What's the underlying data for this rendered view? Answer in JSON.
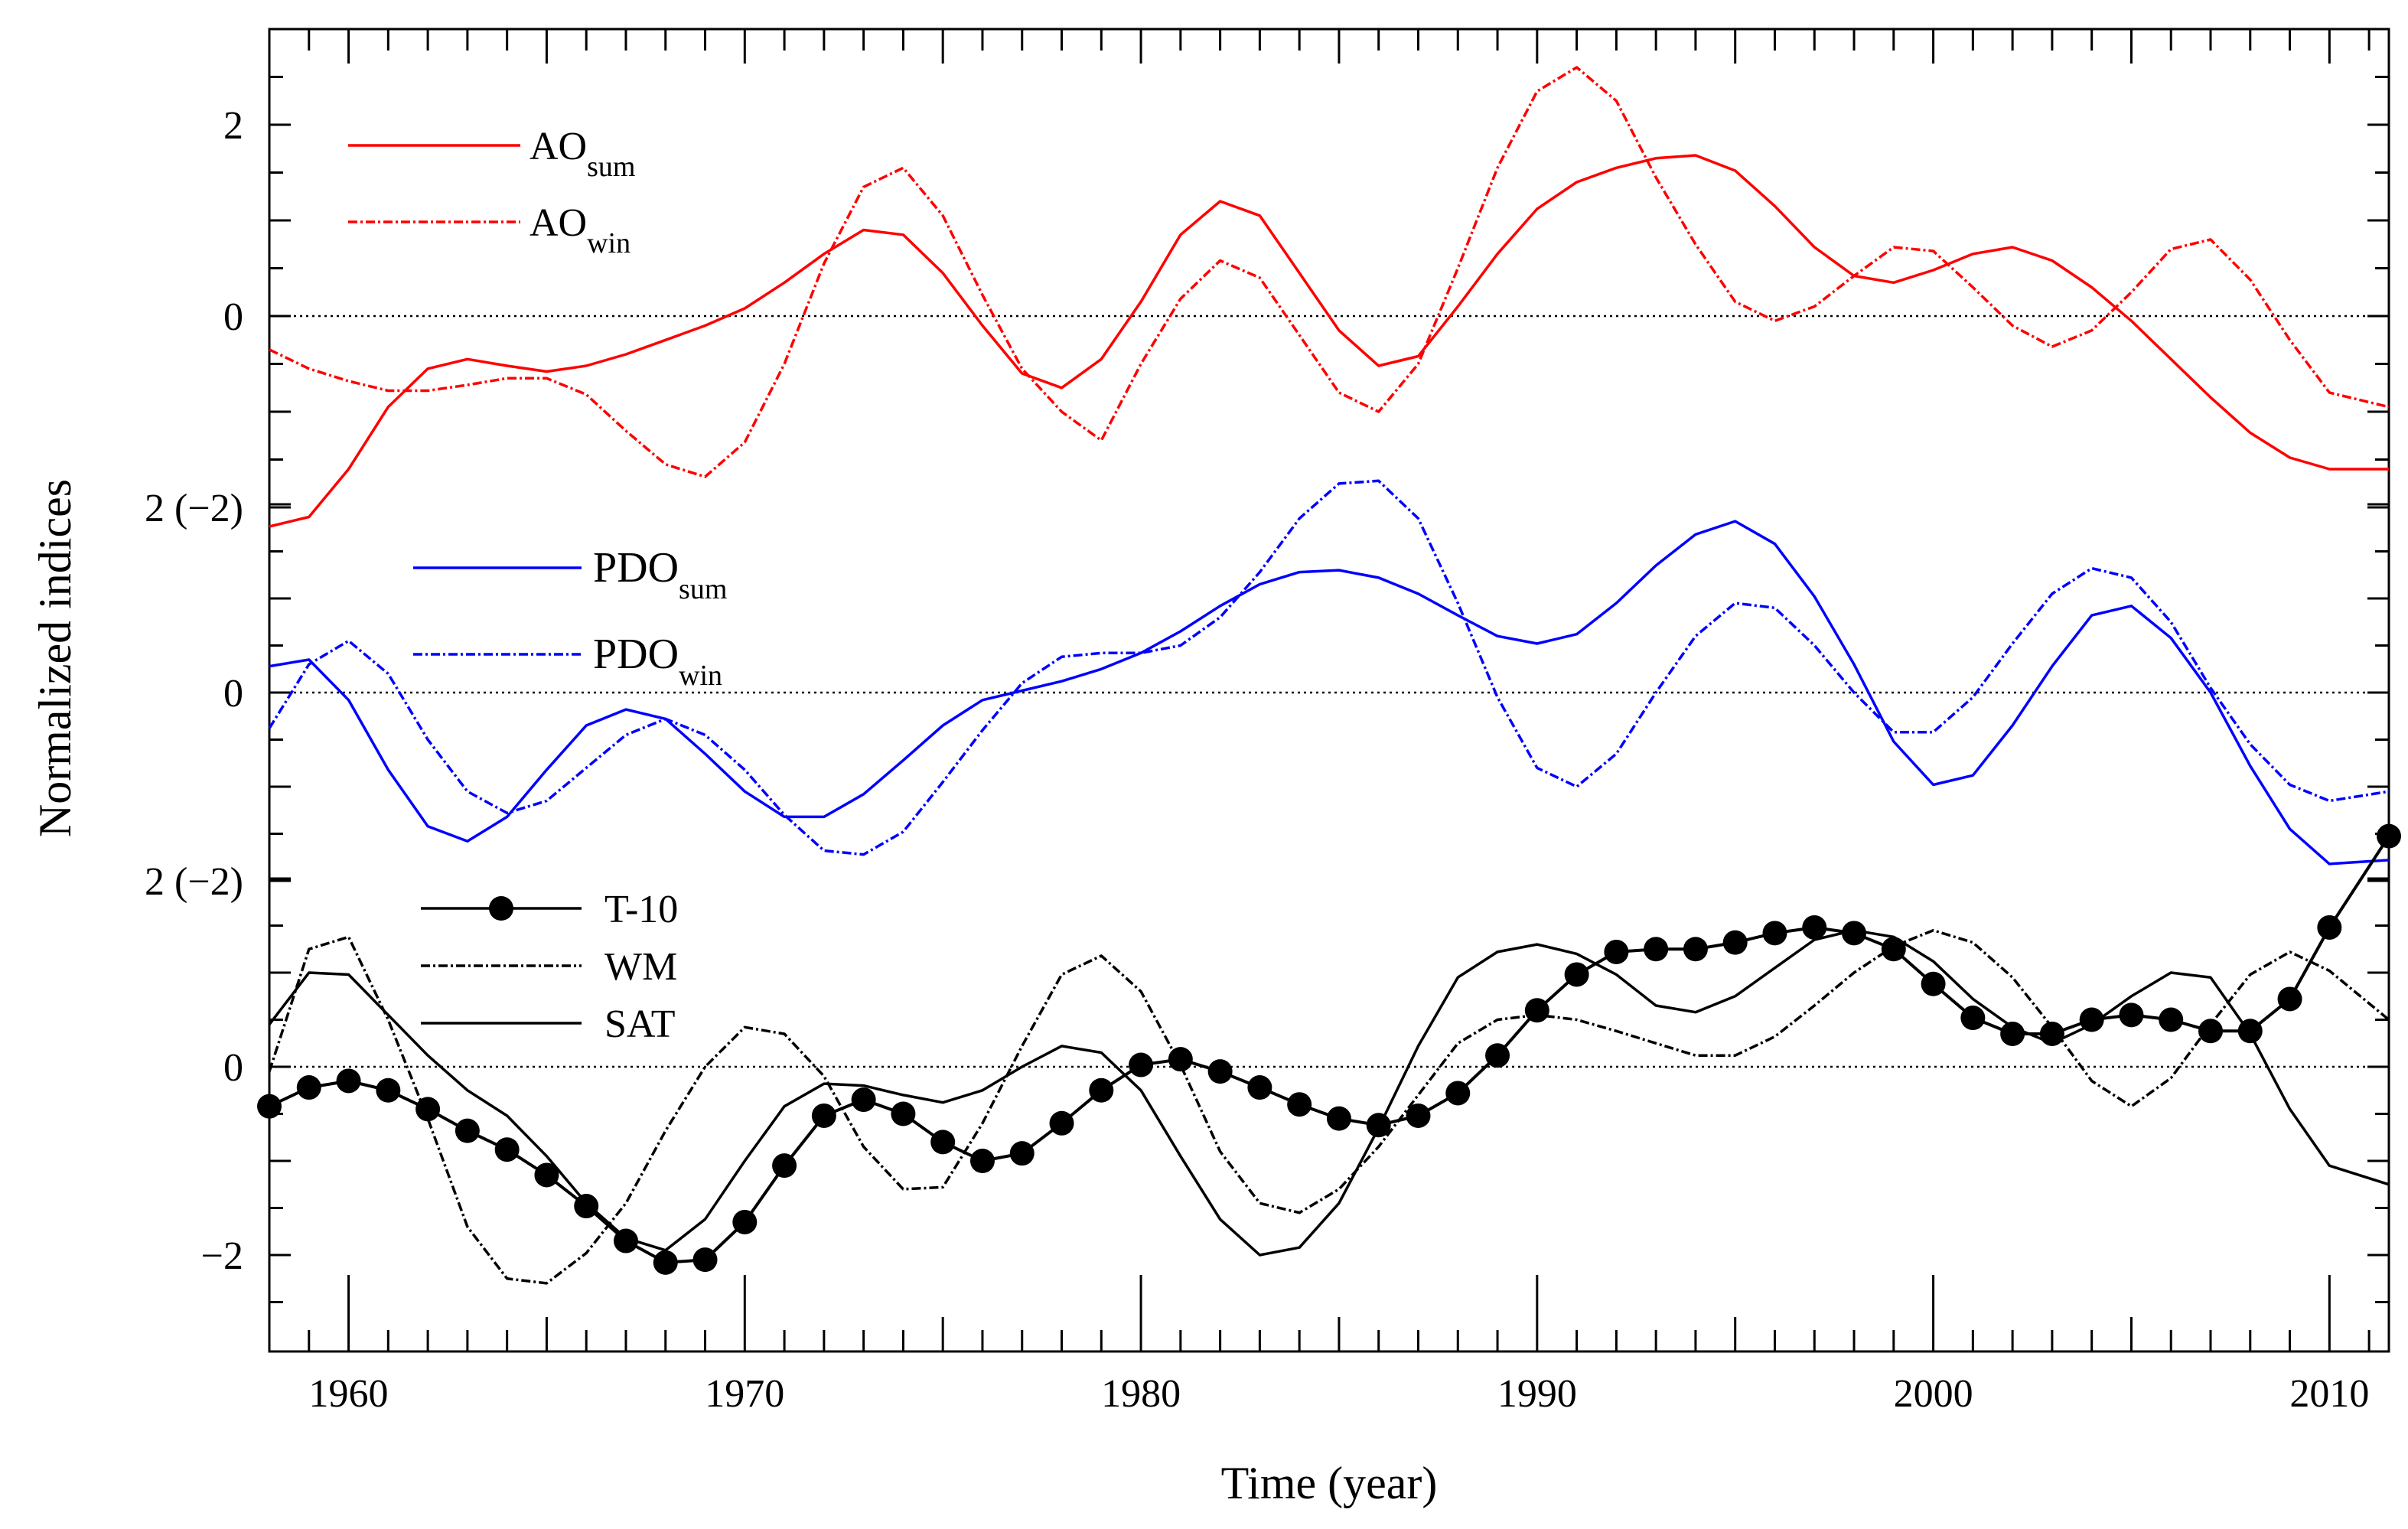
{
  "chart_data": {
    "type": "line",
    "xlabel": "Time (year)",
    "ylabel": "Normalized indices",
    "xlim": [
      1958,
      2011.5
    ],
    "x_ticks": [
      1960,
      1970,
      1980,
      1990,
      2000,
      2010
    ],
    "panels": [
      {
        "name": "AO",
        "ylim": [
          -2.2,
          3.1
        ],
        "y_ticks": [
          {
            "value": 2,
            "label": "2"
          },
          {
            "value": 0,
            "label": "0"
          }
        ],
        "shared_tick": {
          "value": -2,
          "label": "2 (−2)"
        },
        "series": [
          {
            "name": "AO",
            "sub": "sum",
            "color": "#ff0000",
            "style": "solid",
            "years": [
              1958,
              1959,
              1960,
              1961,
              1962,
              1963,
              1964,
              1965,
              1966,
              1967,
              1968,
              1969,
              1970,
              1971,
              1972,
              1973,
              1974,
              1975,
              1976,
              1977,
              1978,
              1979,
              1980,
              1981,
              1982,
              1983,
              1984,
              1985,
              1986,
              1987,
              1988,
              1989,
              1990,
              1991,
              1992,
              1993,
              1994,
              1995,
              1996,
              1997,
              1998,
              1999,
              2000,
              2001,
              2002,
              2003,
              2004,
              2005,
              2006,
              2007,
              2008,
              2009,
              2010,
              2011.5
            ],
            "values": [
              -2.2,
              -2.1,
              -1.6,
              -0.95,
              -0.55,
              -0.45,
              -0.52,
              -0.58,
              -0.52,
              -0.4,
              -0.25,
              -0.1,
              0.08,
              0.35,
              0.65,
              0.9,
              0.85,
              0.45,
              -0.1,
              -0.6,
              -0.75,
              -0.45,
              0.15,
              0.85,
              1.2,
              1.05,
              0.45,
              -0.15,
              -0.52,
              -0.42,
              0.1,
              0.65,
              1.12,
              1.4,
              1.55,
              1.65,
              1.68,
              1.52,
              1.15,
              0.72,
              0.42,
              0.35,
              0.48,
              0.65,
              0.72,
              0.58,
              0.3,
              -0.05,
              -0.45,
              -0.85,
              -1.22,
              -1.48,
              -1.6,
              -1.6
            ]
          },
          {
            "name": "AO",
            "sub": "win",
            "color": "#ff0000",
            "style": "dashed",
            "years": [
              1958,
              1959,
              1960,
              1961,
              1962,
              1963,
              1964,
              1965,
              1966,
              1967,
              1968,
              1969,
              1970,
              1971,
              1972,
              1973,
              1974,
              1975,
              1976,
              1977,
              1978,
              1979,
              1980,
              1981,
              1982,
              1983,
              1984,
              1985,
              1986,
              1987,
              1988,
              1989,
              1990,
              1991,
              1992,
              1993,
              1994,
              1995,
              1996,
              1997,
              1998,
              1999,
              2000,
              2001,
              2002,
              2003,
              2004,
              2005,
              2006,
              2007,
              2008,
              2009,
              2010,
              2011.5
            ],
            "values": [
              -0.35,
              -0.55,
              -0.68,
              -0.78,
              -0.78,
              -0.72,
              -0.65,
              -0.65,
              -0.82,
              -1.2,
              -1.55,
              -1.68,
              -1.32,
              -0.5,
              0.55,
              1.35,
              1.55,
              1.05,
              0.22,
              -0.55,
              -1.0,
              -1.3,
              -0.5,
              0.18,
              0.58,
              0.4,
              -0.2,
              -0.8,
              -1.0,
              -0.5,
              0.5,
              1.55,
              2.35,
              2.6,
              2.25,
              1.45,
              0.75,
              0.15,
              -0.05,
              0.1,
              0.42,
              0.72,
              0.68,
              0.3,
              -0.1,
              -0.32,
              -0.15,
              0.25,
              0.7,
              0.8,
              0.38,
              -0.25,
              -0.8,
              -0.95
            ]
          }
        ]
      },
      {
        "name": "PDO",
        "ylim": [
          -2.2,
          2.2
        ],
        "y_ticks": [
          {
            "value": 0,
            "label": "0"
          }
        ],
        "shared_tick": {
          "value": -2,
          "label": "2 (−2)"
        },
        "series": [
          {
            "name": "PDO",
            "sub": "sum",
            "color": "#0000ff",
            "style": "solid",
            "years": [
              1958,
              1959,
              1960,
              1961,
              1962,
              1963,
              1964,
              1965,
              1966,
              1967,
              1968,
              1969,
              1970,
              1971,
              1972,
              1973,
              1974,
              1975,
              1976,
              1977,
              1978,
              1979,
              1980,
              1981,
              1982,
              1983,
              1984,
              1985,
              1986,
              1987,
              1988,
              1989,
              1990,
              1991,
              1992,
              1993,
              1994,
              1995,
              1996,
              1997,
              1998,
              1999,
              2000,
              2001,
              2002,
              2003,
              2004,
              2005,
              2006,
              2007,
              2008,
              2009,
              2010,
              2011.5
            ],
            "values": [
              0.28,
              0.35,
              -0.08,
              -0.82,
              -1.42,
              -1.58,
              -1.32,
              -0.82,
              -0.35,
              -0.18,
              -0.28,
              -0.65,
              -1.05,
              -1.32,
              -1.32,
              -1.08,
              -0.72,
              -0.35,
              -0.08,
              0.02,
              0.12,
              0.25,
              0.42,
              0.65,
              0.92,
              1.15,
              1.28,
              1.3,
              1.22,
              1.05,
              0.82,
              0.6,
              0.52,
              0.62,
              0.95,
              1.35,
              1.68,
              1.82,
              1.58,
              1.02,
              0.3,
              -0.52,
              -0.98,
              -0.88,
              -0.35,
              0.28,
              0.82,
              0.92,
              0.58,
              0.0,
              -0.78,
              -1.45,
              -1.82,
              -1.78
            ]
          },
          {
            "name": "PDO",
            "sub": "win",
            "color": "#0000ff",
            "style": "dashed",
            "years": [
              1958,
              1959,
              1960,
              1961,
              1962,
              1963,
              1964,
              1965,
              1966,
              1967,
              1968,
              1969,
              1970,
              1971,
              1972,
              1973,
              1974,
              1975,
              1976,
              1977,
              1978,
              1979,
              1980,
              1981,
              1982,
              1983,
              1984,
              1985,
              1986,
              1987,
              1988,
              1989,
              1990,
              1991,
              1992,
              1993,
              1994,
              1995,
              1996,
              1997,
              1998,
              1999,
              2000,
              2001,
              2002,
              2003,
              2004,
              2005,
              2006,
              2007,
              2008,
              2009,
              2010,
              2011.5
            ],
            "values": [
              -0.38,
              0.3,
              0.55,
              0.2,
              -0.5,
              -1.05,
              -1.28,
              -1.15,
              -0.8,
              -0.45,
              -0.28,
              -0.45,
              -0.82,
              -1.3,
              -1.68,
              -1.72,
              -1.48,
              -0.95,
              -0.4,
              0.1,
              0.38,
              0.42,
              0.42,
              0.5,
              0.8,
              1.28,
              1.85,
              2.22,
              2.25,
              1.85,
              0.95,
              -0.05,
              -0.8,
              -1.0,
              -0.65,
              0.0,
              0.6,
              0.95,
              0.9,
              0.5,
              0.0,
              -0.42,
              -0.42,
              -0.05,
              0.52,
              1.05,
              1.32,
              1.22,
              0.75,
              0.05,
              -0.55,
              -0.98,
              -1.15,
              -1.05
            ]
          }
        ]
      },
      {
        "name": "Temperature",
        "ylim": [
          -3.0,
          2.2
        ],
        "y_ticks": [
          {
            "value": 0,
            "label": "0"
          },
          {
            "value": -2,
            "label": "−2"
          }
        ],
        "series": [
          {
            "name": "T-10",
            "color": "#000000",
            "style": "markers",
            "years": [
              1958,
              1959,
              1960,
              1961,
              1962,
              1963,
              1964,
              1965,
              1966,
              1967,
              1968,
              1969,
              1970,
              1971,
              1972,
              1973,
              1974,
              1975,
              1976,
              1977,
              1978,
              1979,
              1980,
              1981,
              1982,
              1983,
              1984,
              1985,
              1986,
              1987,
              1988,
              1989,
              1990,
              1991,
              1992,
              1993,
              1994,
              1995,
              1996,
              1997,
              1998,
              1999,
              2000,
              2001,
              2002,
              2003,
              2004,
              2005,
              2006,
              2007,
              2008,
              2009,
              2010,
              2011.5
            ],
            "values": [
              -0.42,
              -0.22,
              -0.15,
              -0.25,
              -0.45,
              -0.68,
              -0.88,
              -1.15,
              -1.48,
              -1.85,
              -2.08,
              -2.05,
              -1.65,
              -1.05,
              -0.52,
              -0.35,
              -0.5,
              -0.8,
              -1.0,
              -0.92,
              -0.6,
              -0.25,
              0.02,
              0.08,
              -0.05,
              -0.22,
              -0.4,
              -0.55,
              -0.62,
              -0.52,
              -0.28,
              0.12,
              0.6,
              0.98,
              1.22,
              1.25,
              1.25,
              1.32,
              1.42,
              1.48,
              1.42,
              1.25,
              0.88,
              0.52,
              0.35,
              0.35,
              0.5,
              0.55,
              0.5,
              0.38,
              0.38,
              0.72,
              1.48,
              2.45
            ]
          },
          {
            "name": "WM",
            "color": "#000000",
            "style": "dashed",
            "years": [
              1958,
              1959,
              1960,
              1961,
              1962,
              1963,
              1964,
              1965,
              1966,
              1967,
              1968,
              1969,
              1970,
              1971,
              1972,
              1973,
              1974,
              1975,
              1976,
              1977,
              1978,
              1979,
              1980,
              1981,
              1982,
              1983,
              1984,
              1985,
              1986,
              1987,
              1988,
              1989,
              1990,
              1991,
              1992,
              1993,
              1994,
              1995,
              1996,
              1997,
              1998,
              1999,
              2000,
              2001,
              2002,
              2003,
              2004,
              2005,
              2006,
              2007,
              2008,
              2009,
              2010,
              2011.5
            ],
            "values": [
              -0.05,
              1.25,
              1.38,
              0.5,
              -0.55,
              -1.7,
              -2.25,
              -2.3,
              -1.98,
              -1.45,
              -0.68,
              0.0,
              0.42,
              0.35,
              -0.1,
              -0.85,
              -1.3,
              -1.28,
              -0.6,
              0.22,
              0.98,
              1.18,
              0.8,
              0.02,
              -0.9,
              -1.45,
              -1.55,
              -1.3,
              -0.85,
              -0.3,
              0.25,
              0.5,
              0.55,
              0.5,
              0.38,
              0.25,
              0.12,
              0.12,
              0.32,
              0.65,
              1.0,
              1.28,
              1.45,
              1.32,
              0.95,
              0.42,
              -0.15,
              -0.42,
              -0.12,
              0.45,
              0.98,
              1.22,
              1.02,
              0.5
            ]
          },
          {
            "name": "SAT",
            "color": "#000000",
            "style": "solid",
            "years": [
              1958,
              1959,
              1960,
              1961,
              1962,
              1963,
              1964,
              1965,
              1966,
              1967,
              1968,
              1969,
              1970,
              1971,
              1972,
              1973,
              1974,
              1975,
              1976,
              1977,
              1978,
              1979,
              1980,
              1981,
              1982,
              1983,
              1984,
              1985,
              1986,
              1987,
              1988,
              1989,
              1990,
              1991,
              1992,
              1993,
              1994,
              1995,
              1996,
              1997,
              1998,
              1999,
              2000,
              2001,
              2002,
              2003,
              2004,
              2005,
              2006,
              2007,
              2008,
              2009,
              2010,
              2011.5
            ],
            "values": [
              0.45,
              1.0,
              0.98,
              0.55,
              0.12,
              -0.25,
              -0.52,
              -0.95,
              -1.45,
              -1.82,
              -1.95,
              -1.62,
              -1.0,
              -0.42,
              -0.18,
              -0.2,
              -0.3,
              -0.38,
              -0.25,
              0.0,
              0.22,
              0.15,
              -0.25,
              -0.95,
              -1.62,
              -2.0,
              -1.92,
              -1.45,
              -0.65,
              0.22,
              0.95,
              1.22,
              1.3,
              1.2,
              0.98,
              0.65,
              0.58,
              0.75,
              1.05,
              1.35,
              1.45,
              1.38,
              1.12,
              0.72,
              0.42,
              0.25,
              0.45,
              0.75,
              1.0,
              0.95,
              0.35,
              -0.45,
              -1.05,
              -1.25
            ]
          }
        ]
      }
    ],
    "reference_lines": "y = 0 dotted line in each panel"
  }
}
